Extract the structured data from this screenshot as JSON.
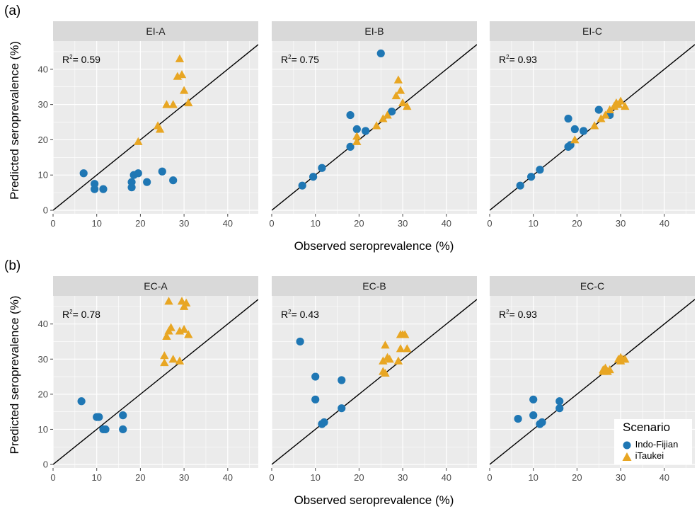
{
  "colors": {
    "indo_fijian": "#1f77b4",
    "itaukei": "#e8a623",
    "strip": "#d9d9d9",
    "panel_bg": "#ebebeb",
    "grid": "#ffffff"
  },
  "legend": {
    "title": "Scenario",
    "items": [
      "Indo-Fijian",
      "iTaukei"
    ]
  },
  "rows": [
    {
      "label": "(a)",
      "xlabel": "Observed seroprevalence (%)",
      "ylabel": "Predicted seroprevalence (%)"
    },
    {
      "label": "(b)",
      "xlabel": "Observed seroprevalence (%)",
      "ylabel": "Predicted seroprevalence (%)"
    }
  ],
  "chart_data": [
    {
      "type": "scatter",
      "title": "EI-A",
      "r2_label": "R",
      "r2_value": "= 0.59",
      "xlim": [
        0,
        47
      ],
      "ylim": [
        -1,
        48
      ],
      "xticks": [
        0,
        10,
        20,
        30,
        40
      ],
      "yticks": [
        0,
        10,
        20,
        30,
        40
      ],
      "series": [
        {
          "name": "Indo-Fijian",
          "points": [
            [
              7,
              10.5
            ],
            [
              9.5,
              7.5
            ],
            [
              9.5,
              6
            ],
            [
              11.5,
              6
            ],
            [
              18,
              8
            ],
            [
              18,
              6.5
            ],
            [
              18.5,
              10
            ],
            [
              19.5,
              10.5
            ],
            [
              21.5,
              8
            ],
            [
              25,
              11
            ],
            [
              27.5,
              8.5
            ]
          ]
        },
        {
          "name": "iTaukei",
          "points": [
            [
              19.5,
              19.5
            ],
            [
              24,
              24
            ],
            [
              24.5,
              23
            ],
            [
              26,
              30
            ],
            [
              27.5,
              30
            ],
            [
              28.5,
              38
            ],
            [
              29,
              43
            ],
            [
              29.5,
              38.5
            ],
            [
              30,
              34
            ],
            [
              31,
              30.5
            ]
          ]
        }
      ]
    },
    {
      "type": "scatter",
      "title": "EI-B",
      "r2_label": "R",
      "r2_value": "= 0.75",
      "xlim": [
        0,
        47
      ],
      "ylim": [
        -1,
        48
      ],
      "xticks": [
        0,
        10,
        20,
        30,
        40
      ],
      "yticks": [
        0,
        10,
        20,
        30,
        40
      ],
      "series": [
        {
          "name": "Indo-Fijian",
          "points": [
            [
              7,
              7
            ],
            [
              9.5,
              9.5
            ],
            [
              11.5,
              12
            ],
            [
              18,
              18
            ],
            [
              18,
              27
            ],
            [
              19.5,
              23
            ],
            [
              21.5,
              22.5
            ],
            [
              25,
              44.5
            ],
            [
              27.5,
              28
            ]
          ]
        },
        {
          "name": "iTaukei",
          "points": [
            [
              19.5,
              19.5
            ],
            [
              19.5,
              21
            ],
            [
              24,
              24
            ],
            [
              25.5,
              26
            ],
            [
              26.5,
              27
            ],
            [
              28.5,
              32.5
            ],
            [
              29,
              37
            ],
            [
              29.5,
              34
            ],
            [
              30,
              30.5
            ],
            [
              31,
              29.5
            ]
          ]
        }
      ]
    },
    {
      "type": "scatter",
      "title": "EI-C",
      "r2_label": "R",
      "r2_value": "= 0.93",
      "xlim": [
        0,
        47
      ],
      "ylim": [
        -1,
        48
      ],
      "xticks": [
        0,
        10,
        20,
        30,
        40
      ],
      "yticks": [
        0,
        10,
        20,
        30,
        40
      ],
      "series": [
        {
          "name": "Indo-Fijian",
          "points": [
            [
              7,
              7
            ],
            [
              9.5,
              9.5
            ],
            [
              11.5,
              11.5
            ],
            [
              18,
              18
            ],
            [
              18,
              26
            ],
            [
              18.5,
              18.5
            ],
            [
              19.5,
              23
            ],
            [
              21.5,
              22.5
            ],
            [
              25,
              28.5
            ],
            [
              27.5,
              27
            ]
          ]
        },
        {
          "name": "iTaukei",
          "points": [
            [
              19.5,
              20
            ],
            [
              24,
              24
            ],
            [
              25.5,
              26
            ],
            [
              26.5,
              27
            ],
            [
              27.5,
              28.5
            ],
            [
              28.5,
              29.5
            ],
            [
              29,
              30.5
            ],
            [
              29.5,
              30
            ],
            [
              30,
              31
            ],
            [
              31,
              29.5
            ]
          ]
        }
      ]
    },
    {
      "type": "scatter",
      "title": "EC-A",
      "r2_label": "R",
      "r2_value": "= 0.78",
      "xlim": [
        0,
        47
      ],
      "ylim": [
        -1,
        48
      ],
      "xticks": [
        0,
        10,
        20,
        30,
        40
      ],
      "yticks": [
        0,
        10,
        20,
        30,
        40
      ],
      "series": [
        {
          "name": "Indo-Fijian",
          "points": [
            [
              6.5,
              18
            ],
            [
              10,
              13.5
            ],
            [
              10.5,
              13.5
            ],
            [
              11.5,
              10
            ],
            [
              12,
              10
            ],
            [
              16,
              14
            ],
            [
              16,
              10
            ]
          ]
        },
        {
          "name": "iTaukei",
          "points": [
            [
              25.5,
              31
            ],
            [
              25.5,
              29
            ],
            [
              26,
              36.5
            ],
            [
              26.5,
              38
            ],
            [
              26.5,
              46.5
            ],
            [
              27,
              39
            ],
            [
              27.5,
              30
            ],
            [
              29,
              29.5
            ],
            [
              29,
              38
            ],
            [
              29.5,
              46.5
            ],
            [
              30,
              45
            ],
            [
              30,
              38.5
            ],
            [
              30.5,
              46
            ],
            [
              31,
              37
            ]
          ]
        }
      ]
    },
    {
      "type": "scatter",
      "title": "EC-B",
      "r2_label": "R",
      "r2_value": "= 0.43",
      "xlim": [
        0,
        47
      ],
      "ylim": [
        -1,
        48
      ],
      "xticks": [
        0,
        10,
        20,
        30,
        40
      ],
      "yticks": [
        0,
        10,
        20,
        30,
        40
      ],
      "series": [
        {
          "name": "Indo-Fijian",
          "points": [
            [
              6.5,
              35
            ],
            [
              10,
              18.5
            ],
            [
              10,
              25
            ],
            [
              11.5,
              11.5
            ],
            [
              12,
              12
            ],
            [
              16,
              24
            ],
            [
              16,
              16
            ]
          ]
        },
        {
          "name": "iTaukei",
          "points": [
            [
              25.5,
              26.5
            ],
            [
              25.5,
              29.5
            ],
            [
              26,
              34
            ],
            [
              26,
              26
            ],
            [
              26.5,
              30.5
            ],
            [
              27,
              30
            ],
            [
              29,
              29.5
            ],
            [
              29.5,
              37
            ],
            [
              29.5,
              33
            ],
            [
              30,
              37
            ],
            [
              30.5,
              37
            ],
            [
              31,
              33
            ]
          ]
        }
      ]
    },
    {
      "type": "scatter",
      "title": "EC-C",
      "r2_label": "R",
      "r2_value": "= 0.93",
      "xlim": [
        0,
        47
      ],
      "ylim": [
        -1,
        48
      ],
      "xticks": [
        0,
        10,
        20,
        30,
        40
      ],
      "yticks": [
        0,
        10,
        20,
        30,
        40
      ],
      "series": [
        {
          "name": "Indo-Fijian",
          "points": [
            [
              6.5,
              13
            ],
            [
              10,
              14
            ],
            [
              10,
              18.5
            ],
            [
              11.5,
              11.5
            ],
            [
              12,
              12
            ],
            [
              16,
              18
            ],
            [
              16,
              16
            ]
          ]
        },
        {
          "name": "iTaukei",
          "points": [
            [
              26,
              26.5
            ],
            [
              26,
              27
            ],
            [
              26.5,
              27.5
            ],
            [
              27,
              26.5
            ],
            [
              27.5,
              27
            ],
            [
              29.5,
              30
            ],
            [
              30,
              30.5
            ],
            [
              30,
              29.5
            ],
            [
              30.5,
              30
            ],
            [
              31,
              30
            ]
          ]
        }
      ]
    }
  ]
}
